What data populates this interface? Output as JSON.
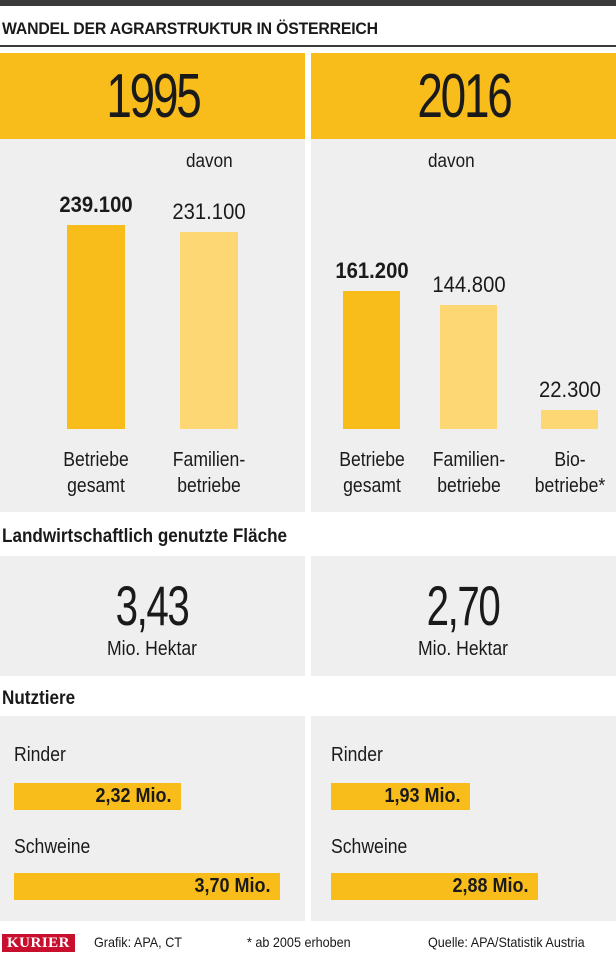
{
  "title": "WANDEL DER AGRARSTRUKTUR IN ÖSTERREICH",
  "colors": {
    "accent": "#f8bd1b",
    "accent_light": "#fcd774",
    "panel": "#efefef",
    "text": "#1a1a1a",
    "brand": "#c8102e"
  },
  "years": [
    "1995",
    "2016"
  ],
  "davon_label": "davon",
  "chart_data": [
    {
      "type": "bar",
      "title": "1995",
      "categories": [
        "Betriebe\ngesamt",
        "Familien-\nbetriebe"
      ],
      "values": [
        239100,
        231100
      ],
      "value_labels": [
        "239.100",
        "231.100"
      ],
      "ymax": 239100
    },
    {
      "type": "bar",
      "title": "2016",
      "categories": [
        "Betriebe\ngesamt",
        "Familien-\nbetriebe",
        "Bio-\nbetriebe*"
      ],
      "values": [
        161200,
        144800,
        22300
      ],
      "value_labels": [
        "161.200",
        "144.800",
        "22.300"
      ],
      "ymax": 239100
    }
  ],
  "flaeche": {
    "title": "Landwirtschaftlich genutzte Fläche",
    "values": [
      "3,43",
      "2,70"
    ],
    "unit": "Mio. Hektar"
  },
  "nutztiere": {
    "title": "Nutztiere",
    "rinder_label": "Rinder",
    "schweine_label": "Schweine",
    "values_1995": {
      "rinder": 2.32,
      "schweine": 3.7
    },
    "values_2016": {
      "rinder": 1.93,
      "schweine": 2.88
    },
    "labels_1995": {
      "rinder": "2,32 Mio.",
      "schweine": "3,70 Mio."
    },
    "labels_2016": {
      "rinder": "1,93 Mio.",
      "schweine": "2,88 Mio."
    }
  },
  "footer": {
    "brand": "KURIER",
    "grafik": "Grafik: APA, CT",
    "note": "* ab 2005 erhoben",
    "source": "Quelle: APA/Statistik Austria"
  }
}
